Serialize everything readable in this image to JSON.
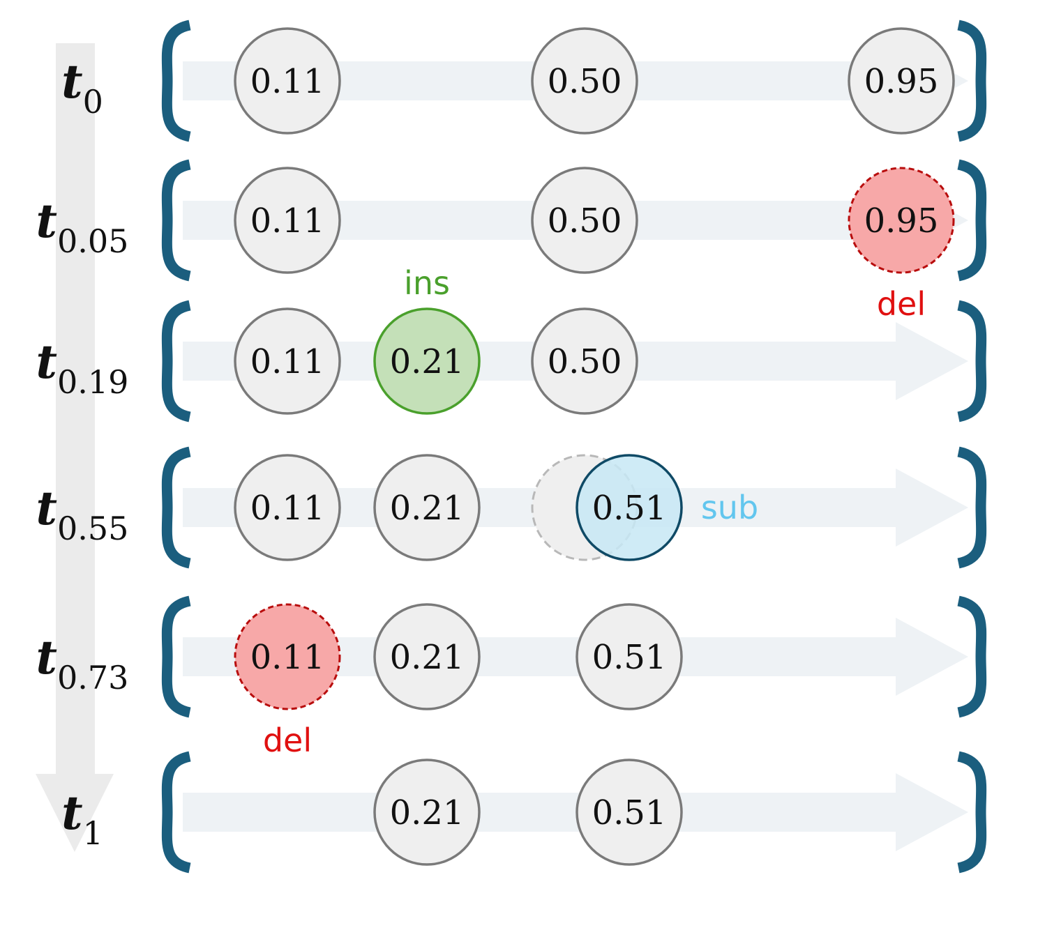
{
  "colors": {
    "bracket": "#1b5e7e",
    "track": "#eef2f5",
    "time_arrow": "#ebebeb",
    "node_fill": "#efefef",
    "node_stroke": "#7a7a7a",
    "del_fill": "#f7a8a8",
    "del_stroke": "#b80d0d",
    "del_label": "#e01010",
    "ins_fill": "#c4e0b8",
    "ins_stroke": "#4aa02c",
    "ins_label": "#4aa02c",
    "sub_fill": "#c7e7f4",
    "sub_stroke": "#0f4a66",
    "sub_label": "#62c6ee",
    "ghost_stroke": "#b8b8b8"
  },
  "rows": [
    {
      "time": {
        "base": "t",
        "sub": "0"
      },
      "nodes": [
        {
          "value": "0.11",
          "slot": 0,
          "state": "normal"
        },
        {
          "value": "0.50",
          "slot": 2,
          "state": "normal"
        },
        {
          "value": "0.95",
          "slot": 4,
          "state": "normal"
        }
      ]
    },
    {
      "time": {
        "base": "t",
        "sub": "0.05"
      },
      "nodes": [
        {
          "value": "0.11",
          "slot": 0,
          "state": "normal"
        },
        {
          "value": "0.50",
          "slot": 2,
          "state": "normal"
        },
        {
          "value": "0.95",
          "slot": 4,
          "state": "del",
          "label": "del"
        }
      ]
    },
    {
      "time": {
        "base": "t",
        "sub": "0.19"
      },
      "nodes": [
        {
          "value": "0.11",
          "slot": 0,
          "state": "normal"
        },
        {
          "value": "0.21",
          "slot": 1,
          "state": "ins",
          "label": "ins"
        },
        {
          "value": "0.50",
          "slot": 2,
          "state": "normal"
        }
      ]
    },
    {
      "time": {
        "base": "t",
        "sub": "0.55"
      },
      "nodes": [
        {
          "value": "0.11",
          "slot": 0,
          "state": "normal"
        },
        {
          "value": "0.21",
          "slot": 1,
          "state": "normal"
        },
        {
          "value": "0.51",
          "slot": 3,
          "state": "sub",
          "label": "sub",
          "ghost_slot": 2
        }
      ]
    },
    {
      "time": {
        "base": "t",
        "sub": "0.73"
      },
      "nodes": [
        {
          "value": "0.11",
          "slot": 0,
          "state": "del",
          "label": "del"
        },
        {
          "value": "0.21",
          "slot": 1,
          "state": "normal"
        },
        {
          "value": "0.51",
          "slot": 3,
          "state": "normal"
        }
      ]
    },
    {
      "time": {
        "base": "t",
        "sub": "1"
      },
      "nodes": [
        {
          "value": "0.21",
          "slot": 1,
          "state": "normal"
        },
        {
          "value": "0.51",
          "slot": 3,
          "state": "normal"
        }
      ]
    }
  ]
}
